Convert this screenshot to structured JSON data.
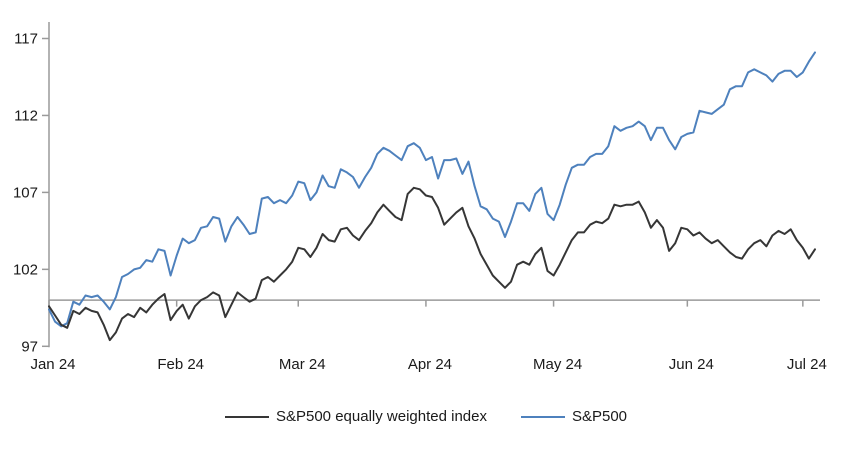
{
  "chart_data": {
    "type": "line",
    "title": "",
    "grid": false,
    "legend_position": "bottom",
    "x_axis": {
      "tick_labels": [
        "Jan 24",
        "Feb 24",
        "Mar 24",
        "Apr 24",
        "May 24",
        "Jun 24",
        "Jul 24"
      ],
      "month_start_indices": [
        0,
        21,
        41,
        62,
        83,
        105,
        124
      ],
      "points_total": 127
    },
    "y_axis": {
      "ticks": [
        97,
        102,
        107,
        112,
        117
      ],
      "min": 97,
      "max": 117,
      "baseline": 100
    },
    "axis_color": "#9a9a9a",
    "text_color": "#1a1a1a",
    "series": [
      {
        "name": "S&P500",
        "color": "#4e81bd",
        "values": [
          99.4,
          98.6,
          98.3,
          98.5,
          99.9,
          99.7,
          100.3,
          100.2,
          100.3,
          99.9,
          99.4,
          100.2,
          101.5,
          101.7,
          102.0,
          102.1,
          102.6,
          102.5,
          103.3,
          103.2,
          101.6,
          102.9,
          104.0,
          103.7,
          103.9,
          104.7,
          104.8,
          105.4,
          105.3,
          103.8,
          104.8,
          105.4,
          104.9,
          104.3,
          104.4,
          106.6,
          106.7,
          106.3,
          106.5,
          106.3,
          106.8,
          107.7,
          107.6,
          106.5,
          107.0,
          108.1,
          107.4,
          107.3,
          108.5,
          108.3,
          108.0,
          107.3,
          108.0,
          108.6,
          109.5,
          109.9,
          109.7,
          109.4,
          109.1,
          110.0,
          110.2,
          109.9,
          109.1,
          109.3,
          107.9,
          109.1,
          109.1,
          109.2,
          108.2,
          109.0,
          107.4,
          106.1,
          105.9,
          105.3,
          105.1,
          104.1,
          105.1,
          106.3,
          106.3,
          105.8,
          106.9,
          107.3,
          105.6,
          105.2,
          106.2,
          107.5,
          108.6,
          108.8,
          108.8,
          109.3,
          109.5,
          109.5,
          110.0,
          111.3,
          111.0,
          111.2,
          111.3,
          111.6,
          111.3,
          110.4,
          111.2,
          111.2,
          110.4,
          109.8,
          110.6,
          110.8,
          110.9,
          112.3,
          112.2,
          112.1,
          112.4,
          112.7,
          113.7,
          113.9,
          113.9,
          114.8,
          115.0,
          114.8,
          114.6,
          114.2,
          114.7,
          114.9,
          114.9,
          114.5,
          114.8,
          115.5,
          116.1
        ]
      },
      {
        "name": "S&P500 equally weighted index",
        "color": "#363636",
        "values": [
          99.6,
          99.0,
          98.4,
          98.2,
          99.3,
          99.1,
          99.5,
          99.3,
          99.2,
          98.4,
          97.4,
          97.9,
          98.8,
          99.1,
          98.9,
          99.5,
          99.2,
          99.7,
          100.1,
          100.4,
          98.7,
          99.3,
          99.7,
          98.8,
          99.6,
          100.0,
          100.2,
          100.5,
          100.3,
          98.9,
          99.7,
          100.5,
          100.2,
          99.9,
          100.1,
          101.3,
          101.5,
          101.2,
          101.6,
          102.0,
          102.5,
          103.4,
          103.3,
          102.8,
          103.4,
          104.3,
          103.9,
          103.8,
          104.6,
          104.7,
          104.2,
          103.9,
          104.5,
          105.0,
          105.7,
          106.2,
          105.8,
          105.4,
          105.2,
          106.9,
          107.3,
          107.2,
          106.8,
          106.7,
          106.0,
          104.9,
          105.3,
          105.7,
          106.0,
          104.8,
          104.0,
          103.0,
          102.3,
          101.6,
          101.2,
          100.8,
          101.2,
          102.3,
          102.5,
          102.3,
          103.0,
          103.4,
          101.9,
          101.6,
          102.3,
          103.1,
          103.9,
          104.4,
          104.4,
          104.9,
          105.1,
          105.0,
          105.3,
          106.2,
          106.1,
          106.2,
          106.2,
          106.4,
          105.7,
          104.7,
          105.2,
          104.7,
          103.2,
          103.7,
          104.7,
          104.6,
          104.2,
          104.4,
          104.0,
          103.7,
          103.9,
          103.5,
          103.1,
          102.8,
          102.7,
          103.3,
          103.7,
          103.9,
          103.5,
          104.2,
          104.5,
          104.3,
          104.6,
          103.9,
          103.4,
          102.7,
          103.3
        ]
      }
    ]
  },
  "legend": {
    "equal_weight_label": "S&P500 equally weighted index",
    "sp500_label": "S&P500"
  }
}
